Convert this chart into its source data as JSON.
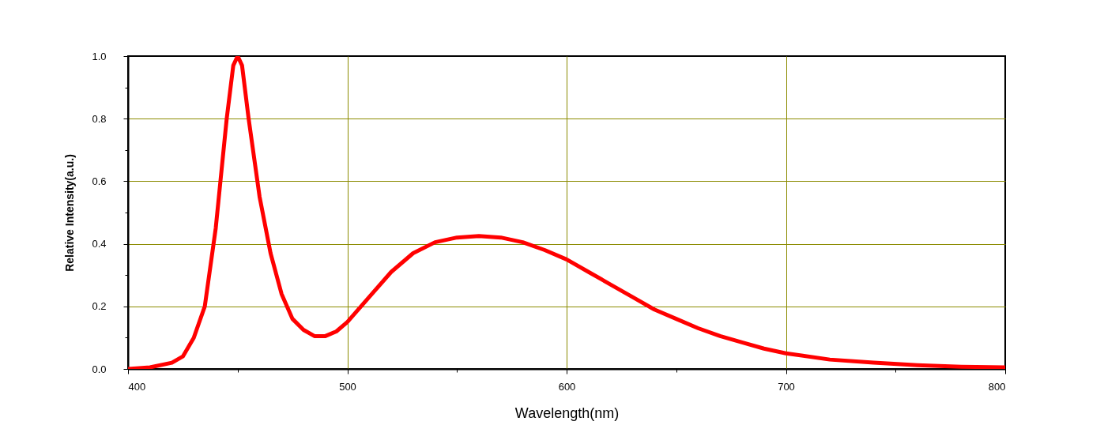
{
  "chart_data": {
    "type": "line",
    "xlabel": "Wavelength(nm)",
    "ylabel": "Relative Intensity(a.u.)",
    "x": [
      400,
      410,
      420,
      425,
      430,
      435,
      440,
      445,
      448,
      450,
      452,
      455,
      460,
      465,
      470,
      475,
      480,
      485,
      490,
      495,
      500,
      510,
      520,
      530,
      540,
      550,
      560,
      570,
      580,
      590,
      600,
      610,
      620,
      630,
      640,
      650,
      660,
      670,
      680,
      690,
      700,
      720,
      740,
      760,
      780,
      800
    ],
    "series": [
      {
        "color": "#ff0000",
        "values": [
          0,
          0.005,
          0.02,
          0.04,
          0.1,
          0.2,
          0.45,
          0.8,
          0.97,
          1.0,
          0.97,
          0.8,
          0.55,
          0.37,
          0.24,
          0.16,
          0.125,
          0.105,
          0.105,
          0.12,
          0.15,
          0.23,
          0.31,
          0.37,
          0.405,
          0.42,
          0.425,
          0.42,
          0.405,
          0.38,
          0.35,
          0.31,
          0.27,
          0.23,
          0.19,
          0.16,
          0.13,
          0.105,
          0.085,
          0.065,
          0.05,
          0.03,
          0.02,
          0.012,
          0.007,
          0.005
        ]
      }
    ],
    "xlim": [
      400,
      800
    ],
    "xticks": [
      400,
      {
        "value": 450,
        "label": null
      },
      500,
      {
        "value": 550,
        "label": null
      },
      600,
      {
        "value": 650,
        "label": null
      },
      700,
      {
        "value": 750,
        "label": null
      },
      800
    ],
    "ylim": [
      0,
      1
    ],
    "yticks": [
      {
        "value": 0,
        "label": "0.0"
      },
      {
        "value": 0.1,
        "label": null
      },
      {
        "value": 0.2,
        "label": "0.2"
      },
      {
        "value": 0.3,
        "label": null
      },
      {
        "value": 0.4,
        "label": "0.4"
      },
      {
        "value": 0.5,
        "label": null
      },
      {
        "value": 0.6,
        "label": "0.6"
      },
      {
        "value": 0.7,
        "label": null
      },
      {
        "value": 0.8,
        "label": "0.8"
      },
      {
        "value": 0.9,
        "label": null
      },
      {
        "value": 1,
        "label": "1.0"
      }
    ],
    "grid": true,
    "marker": "none",
    "line_style": "solid"
  }
}
